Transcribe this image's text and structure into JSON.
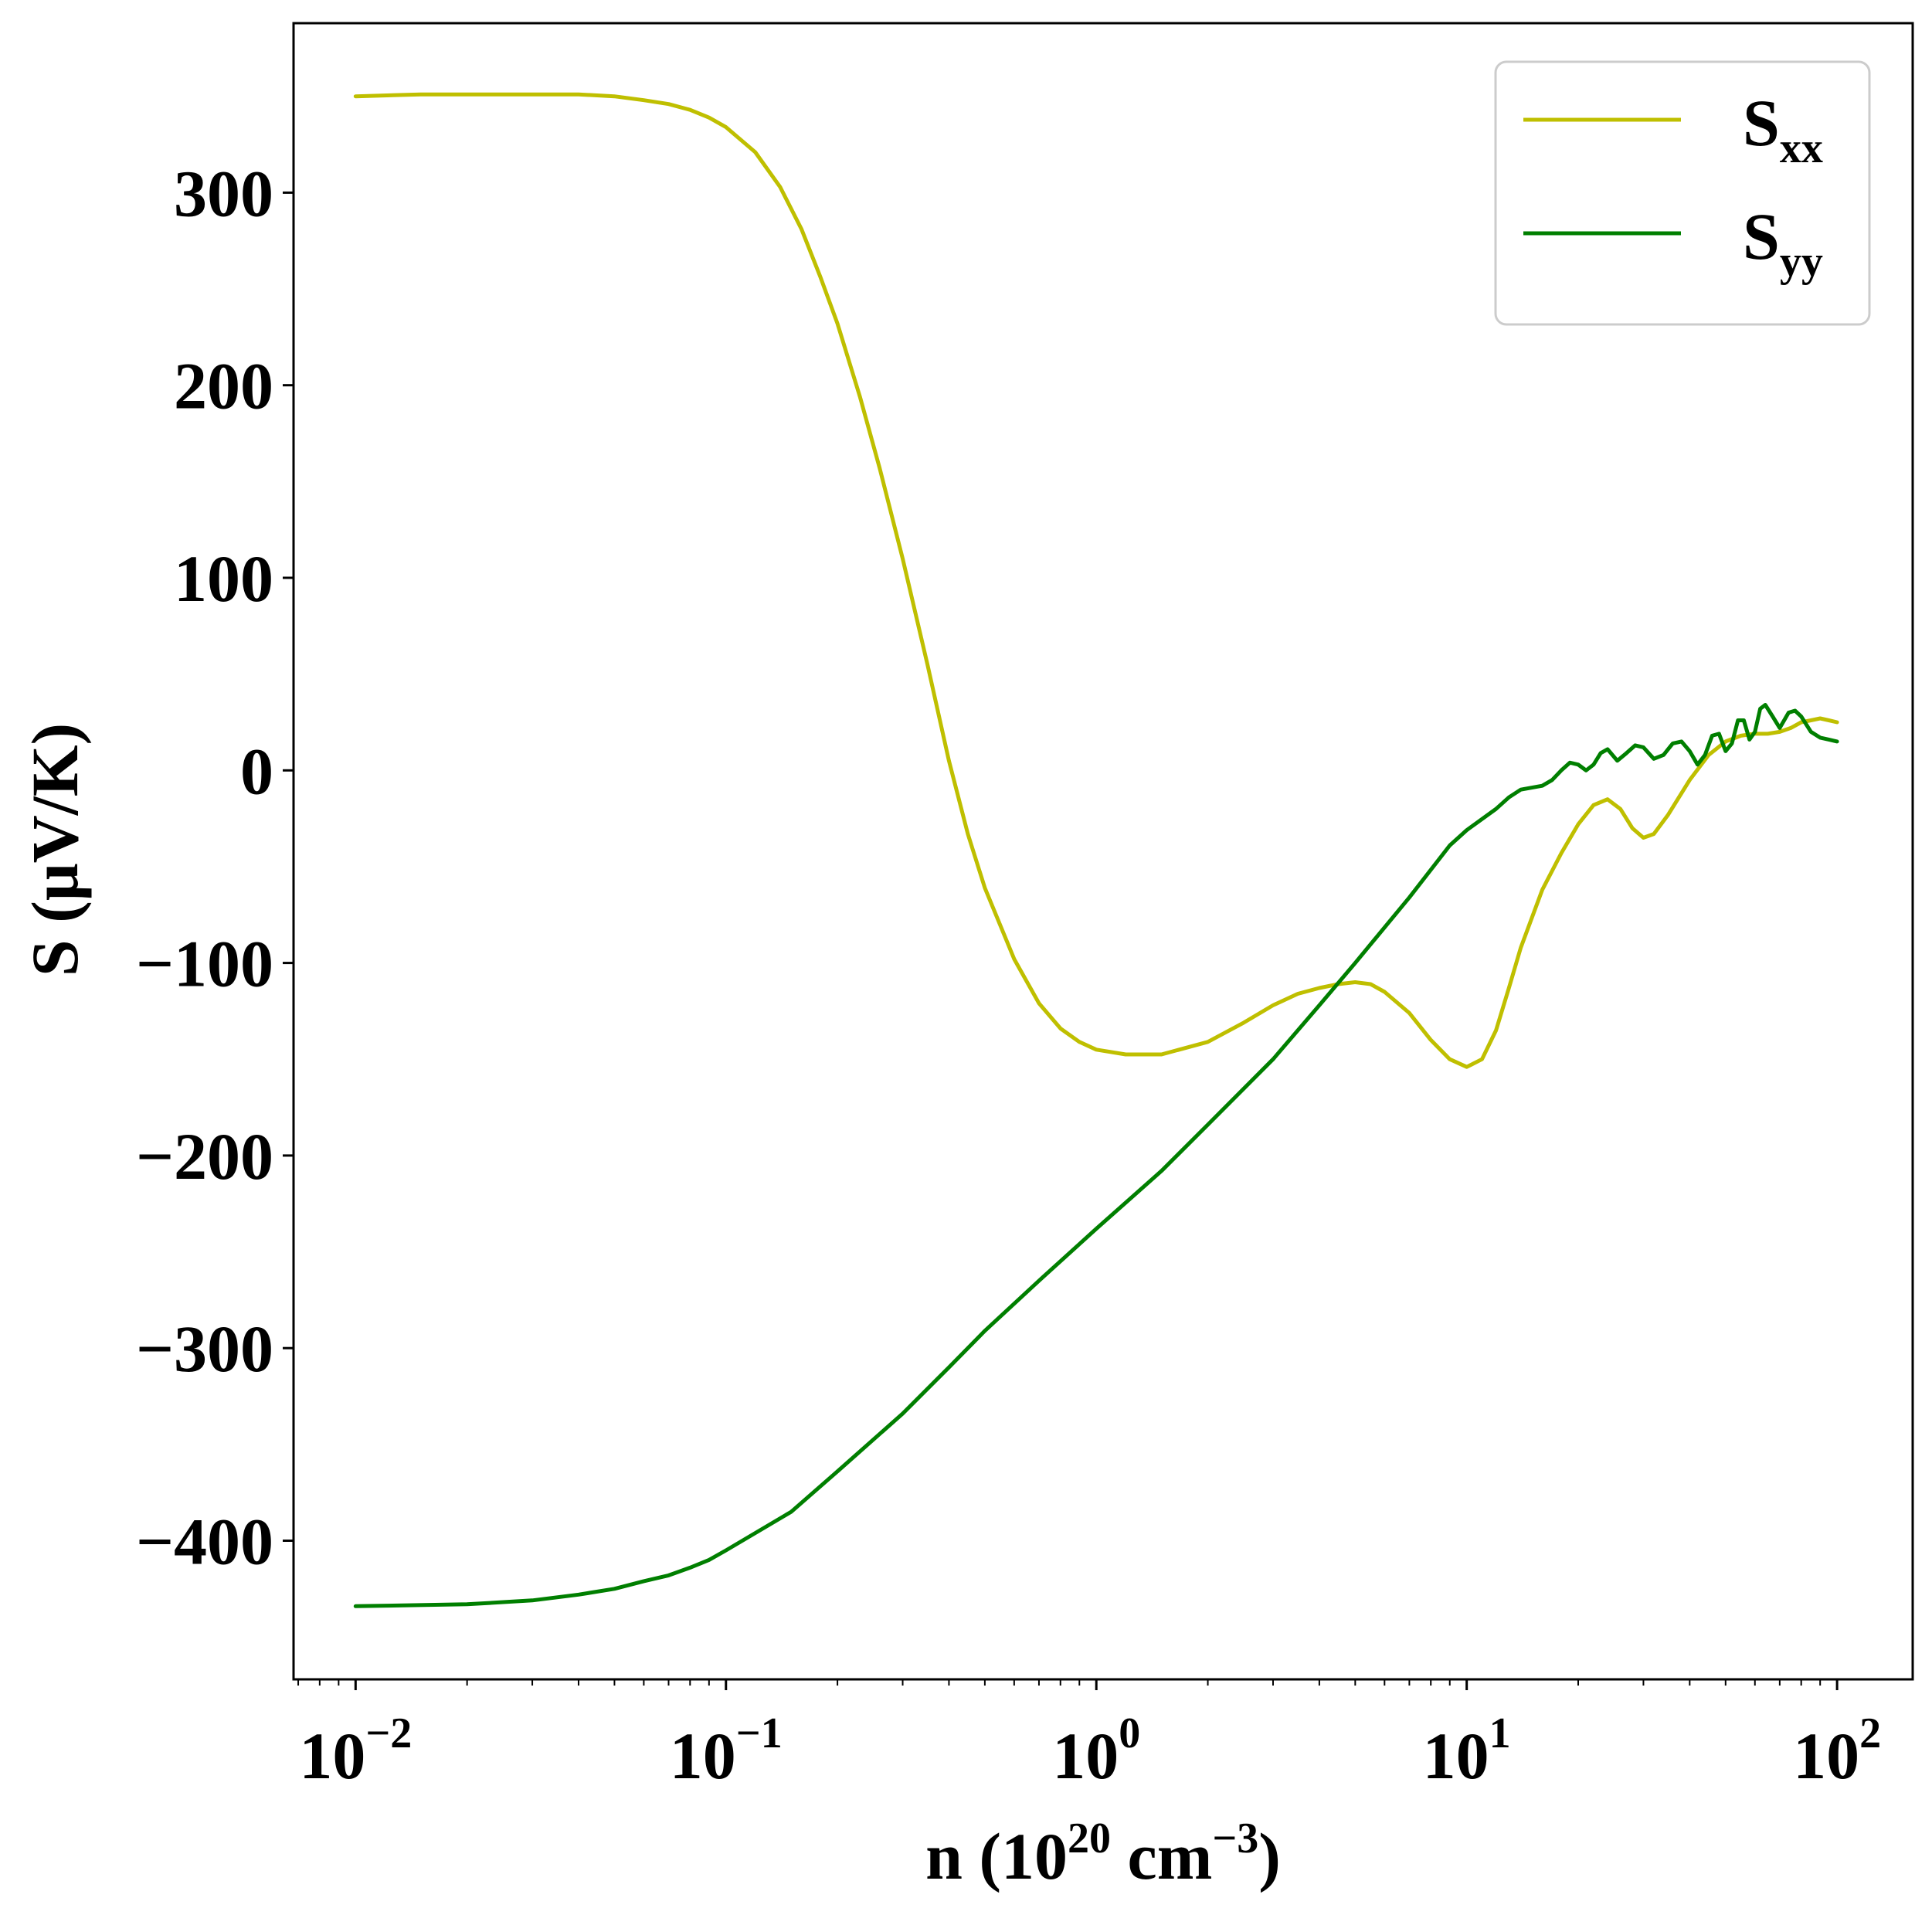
{
  "chart_data": {
    "type": "line",
    "xlabel": {
      "base": "n (10",
      "exp1": "20",
      "mid": " cm",
      "exp2": "−3",
      "end": ")"
    },
    "ylabel": "S (μV/K)",
    "xscale": "log",
    "xlim": [
      0.0068,
      160
    ],
    "ylim": [
      -472,
      388
    ],
    "yticks": [
      300,
      200,
      100,
      0,
      -100,
      -200,
      -300,
      -400
    ],
    "ytick_labels": [
      "300",
      "200",
      "100",
      "0",
      "−100",
      "−200",
      "−300",
      "−400"
    ],
    "xticks": [
      {
        "value": 0.01,
        "base": "10",
        "exp": "−2"
      },
      {
        "value": 0.1,
        "base": "10",
        "exp": "−1"
      },
      {
        "value": 1,
        "base": "10",
        "exp": "0"
      },
      {
        "value": 10,
        "base": "10",
        "exp": "1"
      },
      {
        "value": 100,
        "base": "10",
        "exp": "2"
      }
    ],
    "legend": {
      "placement": "upper-right"
    },
    "grid": false,
    "series": [
      {
        "name": "S",
        "subscript": "xx",
        "color": "#bfbf00",
        "points": [
          [
            0.01,
            350
          ],
          [
            0.015,
            351
          ],
          [
            0.02,
            351
          ],
          [
            0.03,
            351
          ],
          [
            0.04,
            351
          ],
          [
            0.05,
            350
          ],
          [
            0.06,
            348
          ],
          [
            0.07,
            346
          ],
          [
            0.08,
            343
          ],
          [
            0.09,
            339
          ],
          [
            0.1,
            334
          ],
          [
            0.12,
            321
          ],
          [
            0.14,
            303
          ],
          [
            0.16,
            281
          ],
          [
            0.18,
            256
          ],
          [
            0.2,
            232
          ],
          [
            0.23,
            194
          ],
          [
            0.26,
            157
          ],
          [
            0.3,
            110
          ],
          [
            0.35,
            55
          ],
          [
            0.4,
            5
          ],
          [
            0.45,
            -33
          ],
          [
            0.5,
            -61
          ],
          [
            0.6,
            -98
          ],
          [
            0.7,
            -121
          ],
          [
            0.8,
            -134
          ],
          [
            0.9,
            -141
          ],
          [
            1.0,
            -145
          ],
          [
            1.2,
            -147.5
          ],
          [
            1.5,
            -147.5
          ],
          [
            2.0,
            -141
          ],
          [
            2.5,
            -131
          ],
          [
            3.0,
            -122
          ],
          [
            3.5,
            -116
          ],
          [
            4.0,
            -113
          ],
          [
            4.5,
            -111
          ],
          [
            5.0,
            -110
          ],
          [
            5.5,
            -111
          ],
          [
            6.0,
            -115
          ],
          [
            7.0,
            -126
          ],
          [
            8.0,
            -140
          ],
          [
            9.0,
            -150
          ],
          [
            10.0,
            -154
          ],
          [
            11.0,
            -150
          ],
          [
            12.0,
            -135
          ],
          [
            13.0,
            -113
          ],
          [
            14.0,
            -92
          ],
          [
            16.0,
            -62
          ],
          [
            18.0,
            -43
          ],
          [
            20.0,
            -28
          ],
          [
            22.0,
            -18
          ],
          [
            24.0,
            -15
          ],
          [
            26.0,
            -20
          ],
          [
            28.0,
            -30
          ],
          [
            30.0,
            -35
          ],
          [
            32.0,
            -33
          ],
          [
            35.0,
            -23
          ],
          [
            40.0,
            -5
          ],
          [
            45.0,
            8
          ],
          [
            50.0,
            15
          ],
          [
            55.0,
            18
          ],
          [
            60.0,
            19
          ],
          [
            65.0,
            19
          ],
          [
            70.0,
            20
          ],
          [
            75.0,
            22
          ],
          [
            80.0,
            25
          ],
          [
            85.0,
            26
          ],
          [
            90.0,
            27
          ],
          [
            95.0,
            26
          ],
          [
            100.0,
            25
          ]
        ]
      },
      {
        "name": "S",
        "subscript": "yy",
        "color": "#007f00",
        "points": [
          [
            0.01,
            -434
          ],
          [
            0.02,
            -433
          ],
          [
            0.03,
            -431
          ],
          [
            0.04,
            -428
          ],
          [
            0.05,
            -425
          ],
          [
            0.06,
            -421
          ],
          [
            0.07,
            -418
          ],
          [
            0.08,
            -414
          ],
          [
            0.09,
            -410
          ],
          [
            0.1,
            -405
          ],
          [
            0.15,
            -385
          ],
          [
            0.2,
            -364
          ],
          [
            0.3,
            -334
          ],
          [
            0.4,
            -310
          ],
          [
            0.5,
            -291
          ],
          [
            0.7,
            -265
          ],
          [
            1.0,
            -238
          ],
          [
            1.5,
            -208
          ],
          [
            2.0,
            -184
          ],
          [
            3.0,
            -150
          ],
          [
            4.0,
            -122
          ],
          [
            5.0,
            -100
          ],
          [
            7.0,
            -66
          ],
          [
            9.0,
            -39
          ],
          [
            10.0,
            -31
          ],
          [
            12.0,
            -20
          ],
          [
            13.0,
            -14
          ],
          [
            14.0,
            -10
          ],
          [
            16.0,
            -8
          ],
          [
            17.0,
            -5
          ],
          [
            18.0,
            0
          ],
          [
            19.0,
            4
          ],
          [
            20.0,
            3
          ],
          [
            21.0,
            0
          ],
          [
            22.0,
            3
          ],
          [
            23.0,
            9
          ],
          [
            24.0,
            11
          ],
          [
            25.5,
            5
          ],
          [
            27.0,
            9
          ],
          [
            28.5,
            13
          ],
          [
            30.0,
            12
          ],
          [
            32.0,
            6
          ],
          [
            34.0,
            8
          ],
          [
            36.0,
            14
          ],
          [
            38.0,
            15
          ],
          [
            40.0,
            10
          ],
          [
            42.0,
            3
          ],
          [
            44.0,
            8
          ],
          [
            46.0,
            18
          ],
          [
            48.0,
            19
          ],
          [
            50.0,
            10
          ],
          [
            52.0,
            14
          ],
          [
            54.0,
            26
          ],
          [
            56.0,
            26
          ],
          [
            58.0,
            16
          ],
          [
            60.0,
            20
          ],
          [
            62.0,
            32
          ],
          [
            64.0,
            34
          ],
          [
            67.0,
            28
          ],
          [
            70.0,
            22
          ],
          [
            74.0,
            30
          ],
          [
            77.0,
            31
          ],
          [
            80.0,
            28
          ],
          [
            85.0,
            20
          ],
          [
            90.0,
            17
          ],
          [
            95.0,
            16
          ],
          [
            100.0,
            15
          ]
        ]
      }
    ]
  }
}
